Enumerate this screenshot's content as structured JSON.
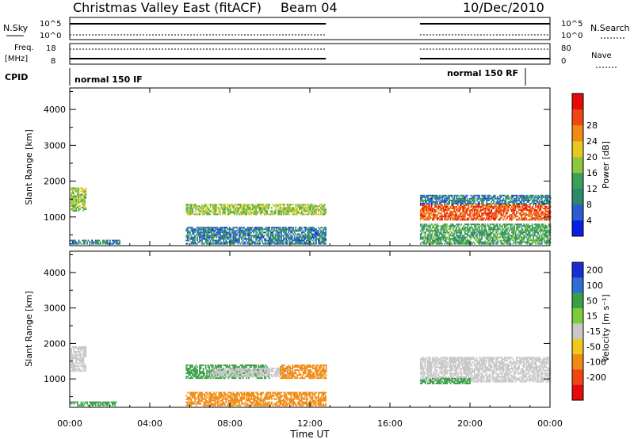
{
  "header": {
    "title": "Christmas Valley East (fitACF)",
    "beam": "Beam 04",
    "date": "10/Dec/2010"
  },
  "top_panel": {
    "left_label": "N.Sky",
    "right_label": "N.Search",
    "left_ticks": [
      "10^5",
      "10^0"
    ],
    "right_ticks": [
      "10^5",
      "10^0"
    ]
  },
  "freq_panel": {
    "left_label": "Freq.",
    "left_unit": "[MHz]",
    "right_label": "Nave",
    "left_ticks": [
      "18",
      "8"
    ],
    "right_ticks": [
      "80",
      "0"
    ]
  },
  "cpid": {
    "label": "CPID",
    "segments": [
      {
        "text": "normal 150 IF",
        "start_hour": 0.0
      },
      {
        "text": "normal 150 RF",
        "start_hour": 22.8
      }
    ]
  },
  "x_axis": {
    "title": "Time UT",
    "ticks": [
      "00:00",
      "04:00",
      "08:00",
      "12:00",
      "16:00",
      "20:00",
      "00:00"
    ],
    "range_hours": [
      0,
      24
    ]
  },
  "power_panel": {
    "ylabel": "Slant Range [km]",
    "yticks": [
      "1000",
      "2000",
      "3000",
      "4000"
    ],
    "colorbar_label": "Power [dB]",
    "colorbar_ticks": [
      "4",
      "8",
      "12",
      "16",
      "20",
      "24",
      "28"
    ],
    "colorbar_colors": [
      "#0a1ee6",
      "#2a5bd0",
      "#2c8a6a",
      "#3aa05a",
      "#8cc83a",
      "#e6c81e",
      "#f08c14",
      "#f04614",
      "#e60a0a"
    ]
  },
  "velocity_panel": {
    "ylabel": "Slant Range [km]",
    "yticks": [
      "1000",
      "2000",
      "3000",
      "4000"
    ],
    "colorbar_label": "Velocity [m s⁻¹]",
    "colorbar_ticks": [
      "200",
      "100",
      "50",
      "15",
      "-15",
      "-50",
      "-100",
      "-200"
    ],
    "colorbar_colors": [
      "#1a2ed0",
      "#2e6ed6",
      "#3aa048",
      "#7ccc3a",
      "#c8c8c8",
      "#f0c81e",
      "#f08c14",
      "#f04614",
      "#e60a0a"
    ]
  },
  "chart_data": {
    "type": "heatmap",
    "x_unit": "hours UT",
    "y_unit": "km",
    "ylim": [
      200,
      4600
    ],
    "xlim": [
      0,
      24
    ],
    "data_gap_hours": [
      12.8,
      17.5
    ],
    "power_regions": [
      {
        "t0": 0.05,
        "t1": 0.8,
        "r0": 1150,
        "r1": 1800,
        "db": 16
      },
      {
        "t0": 0.0,
        "t1": 2.5,
        "r0": 230,
        "r1": 330,
        "db": 8
      },
      {
        "t0": 5.8,
        "t1": 12.8,
        "r0": 1050,
        "r1": 1350,
        "db": 16
      },
      {
        "t0": 5.8,
        "t1": 12.8,
        "r0": 230,
        "r1": 700,
        "db": 8
      },
      {
        "t0": 17.5,
        "t1": 24.0,
        "r0": 900,
        "r1": 1350,
        "db": 26
      },
      {
        "t0": 17.5,
        "t1": 24.0,
        "r0": 1350,
        "r1": 1600,
        "db": 8
      },
      {
        "t0": 17.5,
        "t1": 24.0,
        "r0": 230,
        "r1": 800,
        "db": 12
      }
    ],
    "velocity_regions": [
      {
        "t0": 0.05,
        "t1": 0.8,
        "r0": 1200,
        "r1": 1900,
        "v": 0
      },
      {
        "t0": 0.0,
        "t1": 2.3,
        "r0": 230,
        "r1": 330,
        "v": 50
      },
      {
        "t0": 5.8,
        "t1": 10.0,
        "r0": 1000,
        "r1": 1400,
        "v": 50
      },
      {
        "t0": 7.0,
        "t1": 11.0,
        "r0": 1050,
        "r1": 1300,
        "v": 0
      },
      {
        "t0": 10.5,
        "t1": 12.8,
        "r0": 1000,
        "r1": 1400,
        "v": -50
      },
      {
        "t0": 5.8,
        "t1": 12.8,
        "r0": 230,
        "r1": 600,
        "v": -50
      },
      {
        "t0": 17.5,
        "t1": 24.0,
        "r0": 900,
        "r1": 1600,
        "v": 0
      },
      {
        "t0": 17.5,
        "t1": 20.0,
        "r0": 850,
        "r1": 1000,
        "v": 50
      }
    ]
  }
}
